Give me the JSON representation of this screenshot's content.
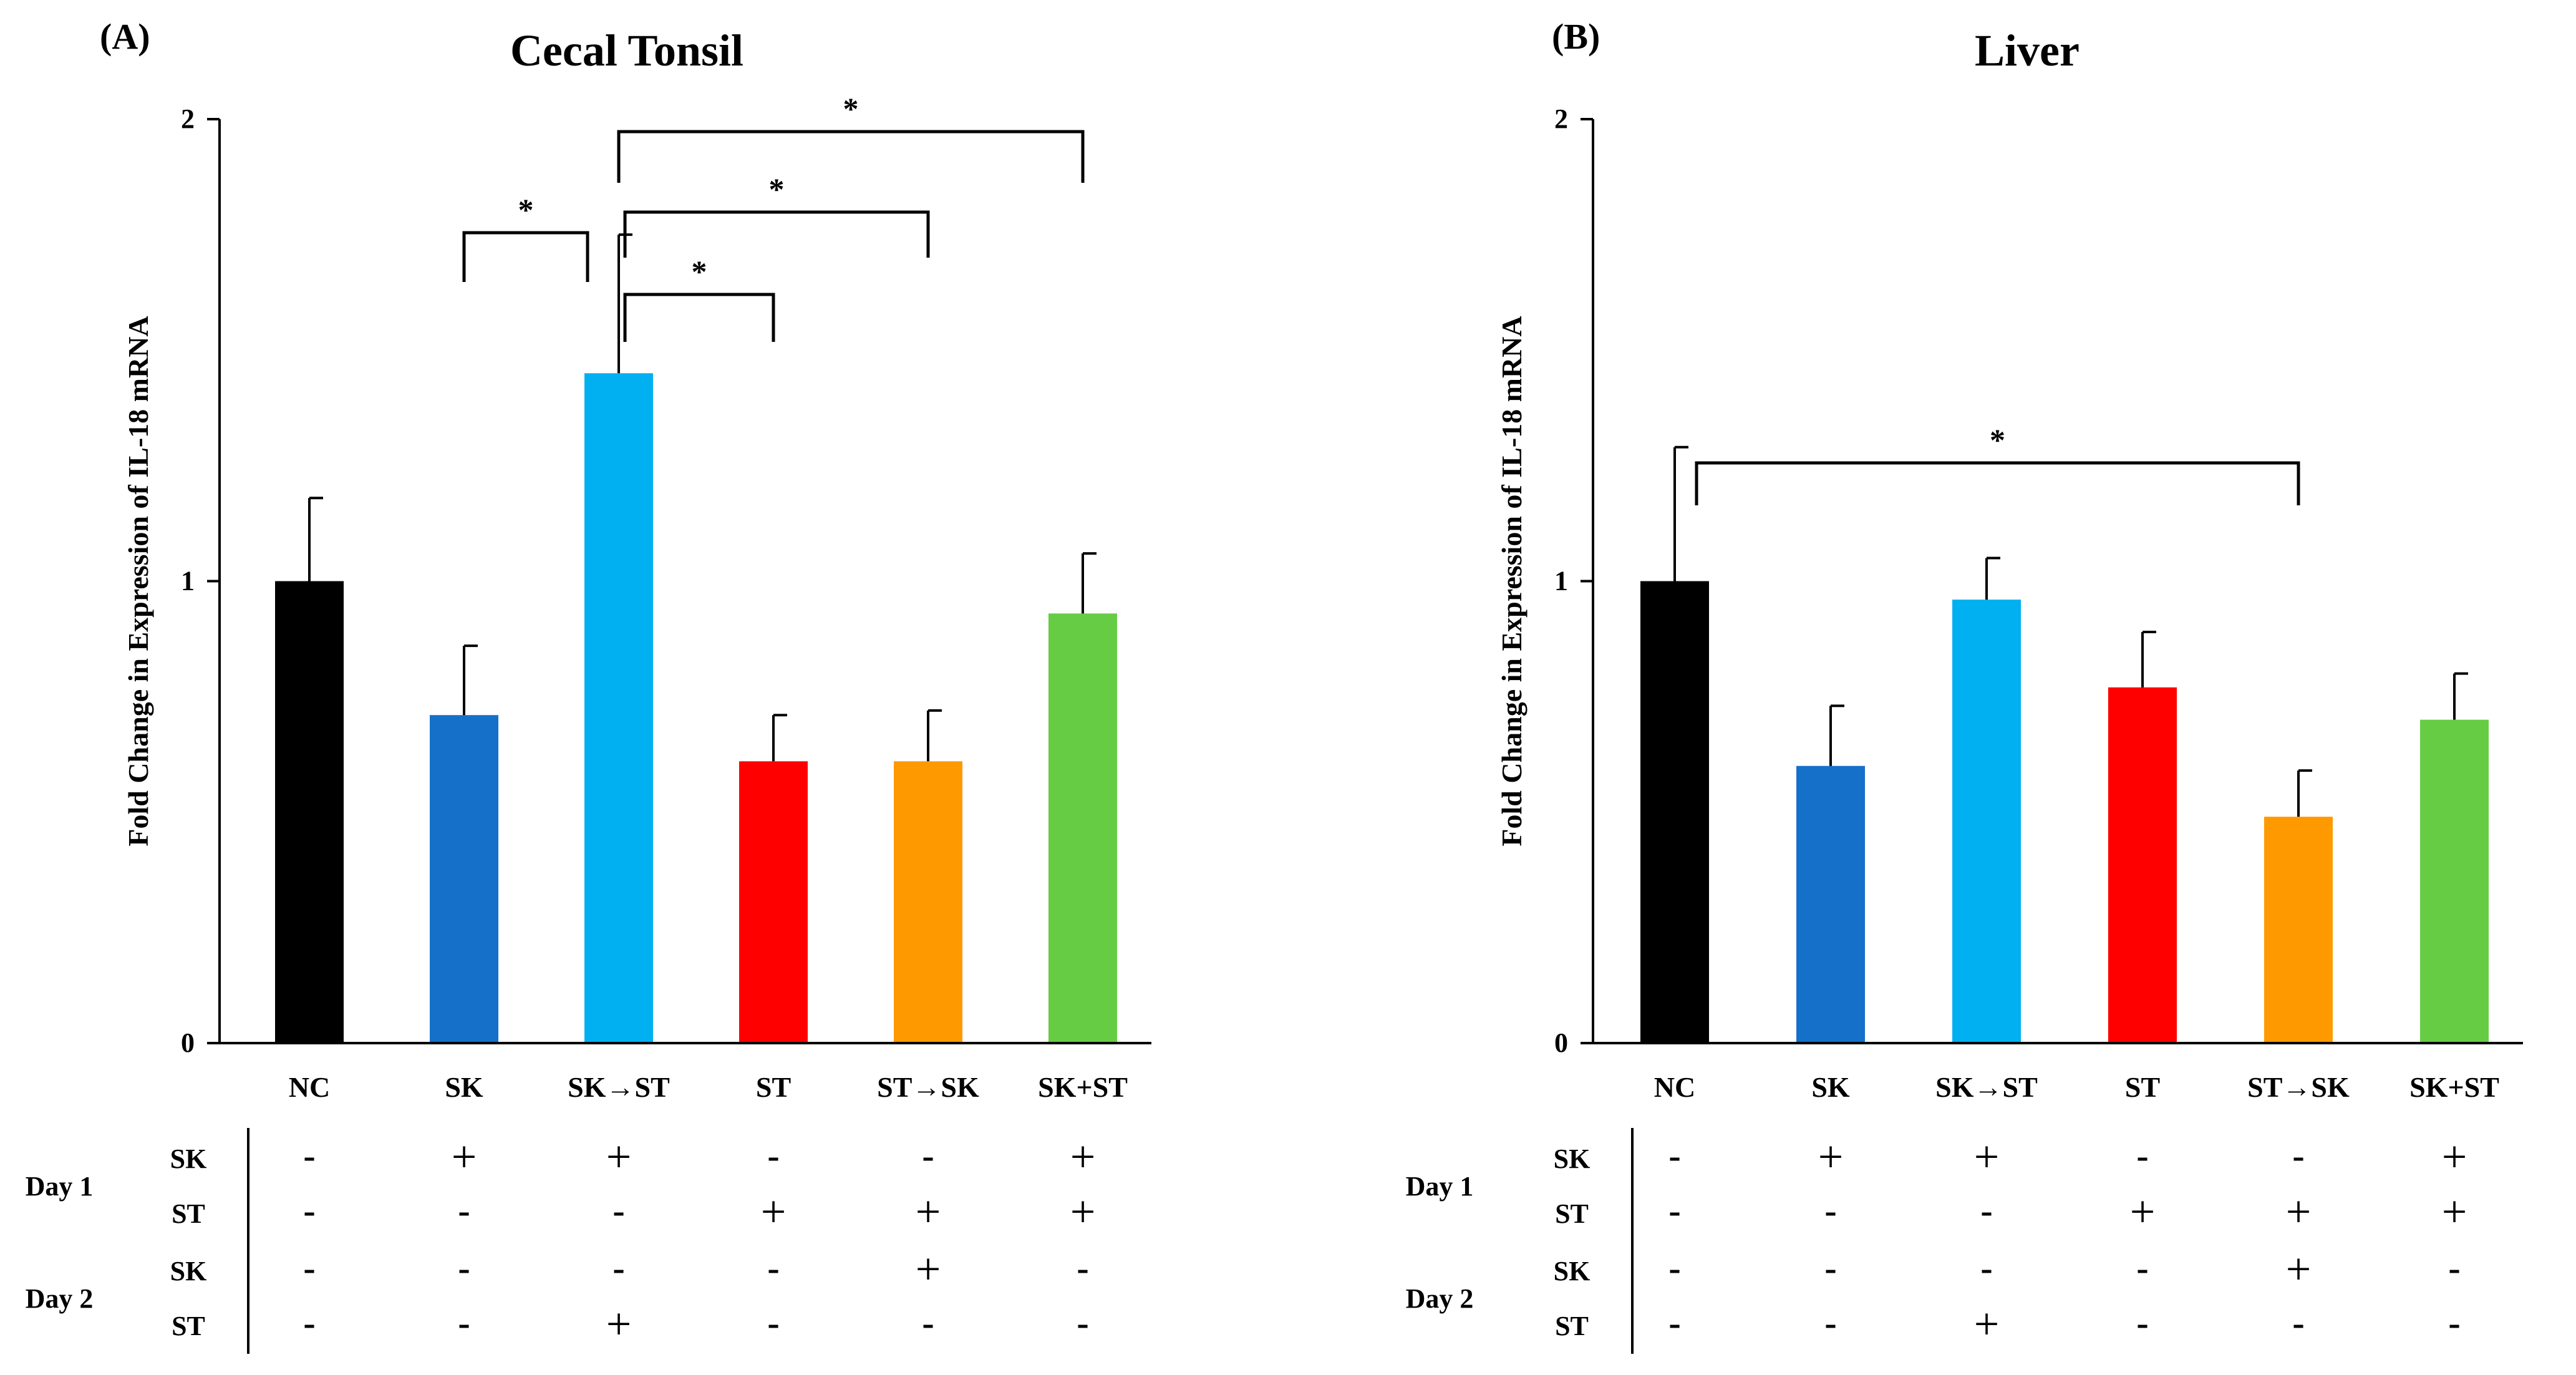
{
  "colors": {
    "NC": "#000000",
    "SK": "#1570c9",
    "SK→ST": "#00b0f0",
    "ST": "#ff0000",
    "ST→SK": "#ff9900",
    "SK+ST": "#66cc44"
  },
  "table_rows": [
    {
      "day": "Day 1",
      "label": "SK"
    },
    {
      "day": "",
      "label": "ST"
    },
    {
      "day": "Day 2",
      "label": "SK"
    },
    {
      "day": "",
      "label": "ST"
    }
  ],
  "chart_data": [
    {
      "panel_label": "(A)",
      "title": "Cecal Tonsil",
      "type": "bar",
      "ylabel": "Fold Change in Expression of IL-18 mRNA",
      "xlabel": "",
      "ylim": [
        0,
        2
      ],
      "yticks": [
        "0",
        "1",
        "2"
      ],
      "categories": [
        "NC",
        "SK",
        "SK→ST",
        "ST",
        "ST→SK",
        "SK+ST"
      ],
      "values": [
        1.0,
        0.71,
        1.45,
        0.61,
        0.61,
        0.93
      ],
      "errors": [
        0.18,
        0.15,
        0.3,
        0.1,
        0.11,
        0.13
      ],
      "significance": [
        {
          "from": "SK",
          "to": "SK→ST",
          "label": "*"
        },
        {
          "from": "SK→ST",
          "to": "ST",
          "label": "*"
        },
        {
          "from": "SK→ST",
          "to": "ST→SK",
          "label": "*"
        },
        {
          "from": "SK→ST",
          "to": "SK+ST",
          "label": "*"
        }
      ],
      "treatment_table": [
        [
          "-",
          "+",
          "+",
          "-",
          "-",
          "+"
        ],
        [
          "-",
          "-",
          "-",
          "+",
          "+",
          "+"
        ],
        [
          "-",
          "-",
          "-",
          "-",
          "+",
          "-"
        ],
        [
          "-",
          "-",
          "+",
          "-",
          "-",
          "-"
        ]
      ]
    },
    {
      "panel_label": "(B)",
      "title": "Liver",
      "type": "bar",
      "ylabel": "Fold Change in Expression of IL-18 mRNA",
      "xlabel": "",
      "ylim": [
        0,
        2
      ],
      "yticks": [
        "0",
        "1",
        "2"
      ],
      "categories": [
        "NC",
        "SK",
        "SK→ST",
        "ST",
        "ST→SK",
        "SK+ST"
      ],
      "values": [
        1.0,
        0.6,
        0.96,
        0.77,
        0.49,
        0.7
      ],
      "errors": [
        0.29,
        0.13,
        0.09,
        0.12,
        0.1,
        0.1
      ],
      "significance": [
        {
          "from": "NC",
          "to": "ST→SK",
          "label": "*"
        }
      ],
      "treatment_table": [
        [
          "-",
          "+",
          "+",
          "-",
          "-",
          "+"
        ],
        [
          "-",
          "-",
          "-",
          "+",
          "+",
          "+"
        ],
        [
          "-",
          "-",
          "-",
          "-",
          "+",
          "-"
        ],
        [
          "-",
          "-",
          "+",
          "-",
          "-",
          "-"
        ]
      ]
    }
  ]
}
